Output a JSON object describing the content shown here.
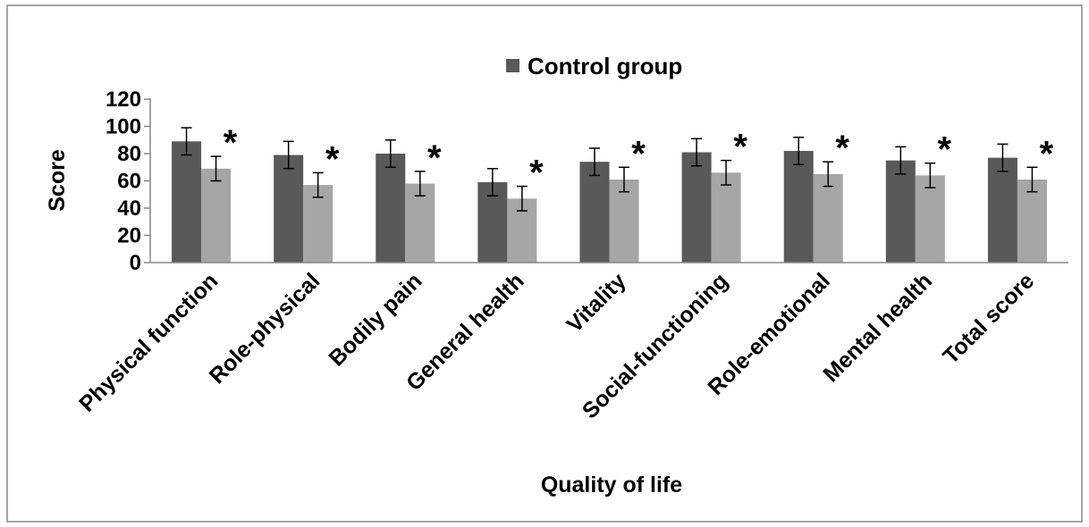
{
  "chart_data": {
    "type": "bar",
    "categories": [
      "Physical function",
      "Role-physical",
      "Bodily pain",
      "General health",
      "Vitality",
      "Social-functioning",
      "Role-emotional",
      "Mental health",
      "Total score"
    ],
    "series": [
      {
        "name": "Control group",
        "color": "#595959",
        "values": [
          89,
          79,
          80,
          59,
          74,
          81,
          82,
          75,
          77
        ],
        "errors": [
          10,
          10,
          10,
          10,
          10,
          10,
          10,
          10,
          10
        ]
      },
      {
        "color": "#a6a6a6",
        "values": [
          69,
          57,
          58,
          47,
          61,
          66,
          65,
          64,
          61
        ],
        "errors": [
          9,
          9,
          9,
          9,
          9,
          9,
          9,
          9,
          9
        ]
      }
    ],
    "significance_marker": "*",
    "xlabel": "Quality of life",
    "ylabel": "Score",
    "ylim": [
      0,
      120
    ],
    "yticks": [
      "0",
      "20",
      "40",
      "60",
      "80",
      "100",
      "120"
    ],
    "grid": false,
    "legend_position": "top-center"
  }
}
